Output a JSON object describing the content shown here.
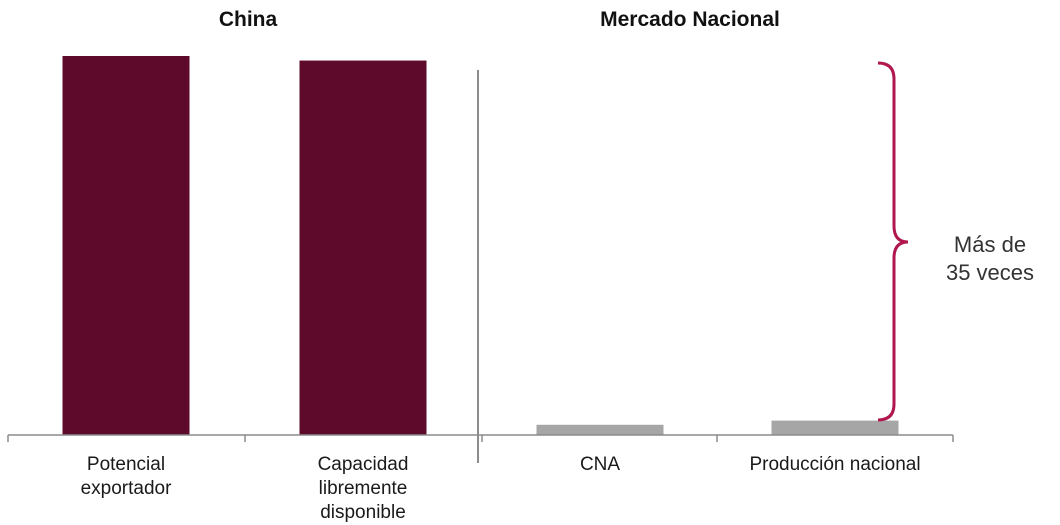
{
  "chart_data": {
    "type": "bar",
    "groups": [
      {
        "title": "China",
        "categories": [
          "Potencial exportador",
          "Capacidad libremente disponible"
        ]
      },
      {
        "title": "Mercado Nacional",
        "categories": [
          "CNA",
          "Producción nacional"
        ]
      }
    ],
    "categories": [
      [
        "Potencial",
        "exportador"
      ],
      [
        "Capacidad",
        "libremente",
        "disponible"
      ],
      [
        "CNA"
      ],
      [
        "Producción nacional"
      ]
    ],
    "values": [
      100,
      98.8,
      2.7,
      3.8
    ],
    "value_units": "relative (bar heights read visually; no axis values shown)",
    "ylim": [
      0,
      100
    ],
    "colors": [
      "#5e0a2a",
      "#5e0a2a",
      "#a6a6a6",
      "#a6a6a6"
    ],
    "bracket_color": "#b0174e",
    "annotation": {
      "lines": [
        "Más de",
        "35 veces"
      ]
    },
    "grid": false,
    "legend": "none"
  }
}
